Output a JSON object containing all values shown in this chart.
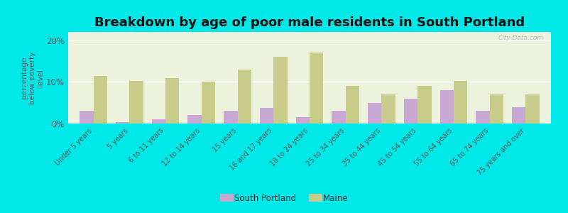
{
  "title": "Breakdown by age of poor male residents in South Portland",
  "ylabel": "percentage\nbelow poverty\nlevel",
  "categories": [
    "Under 5 years",
    "5 years",
    "6 to 11 years",
    "12 to 14 years",
    "15 years",
    "16 and 17 years",
    "18 to 24 years",
    "25 to 34 years",
    "35 to 44 years",
    "45 to 54 years",
    "55 to 64 years",
    "65 to 74 years",
    "75 years and over"
  ],
  "south_portland": [
    3.0,
    0.3,
    1.0,
    2.0,
    3.0,
    3.8,
    1.5,
    3.0,
    5.0,
    6.0,
    8.0,
    3.0,
    4.0
  ],
  "maine": [
    11.5,
    10.3,
    11.0,
    10.0,
    13.0,
    16.0,
    17.0,
    9.0,
    7.0,
    9.0,
    10.2,
    7.0,
    7.0
  ],
  "sp_color": "#c9a8d4",
  "maine_color": "#c8cc8a",
  "background_color": "#00e8e8",
  "plot_bg": "#edf2dc",
  "ylim": [
    0,
    22
  ],
  "yticks": [
    0,
    10,
    20
  ],
  "ytick_labels": [
    "0%",
    "10%",
    "20%"
  ],
  "title_fontsize": 13,
  "ylabel_fontsize": 7.5,
  "tick_label_fontsize": 7,
  "legend_fontsize": 8.5,
  "bar_width": 0.38,
  "watermark": "City-Data.com"
}
